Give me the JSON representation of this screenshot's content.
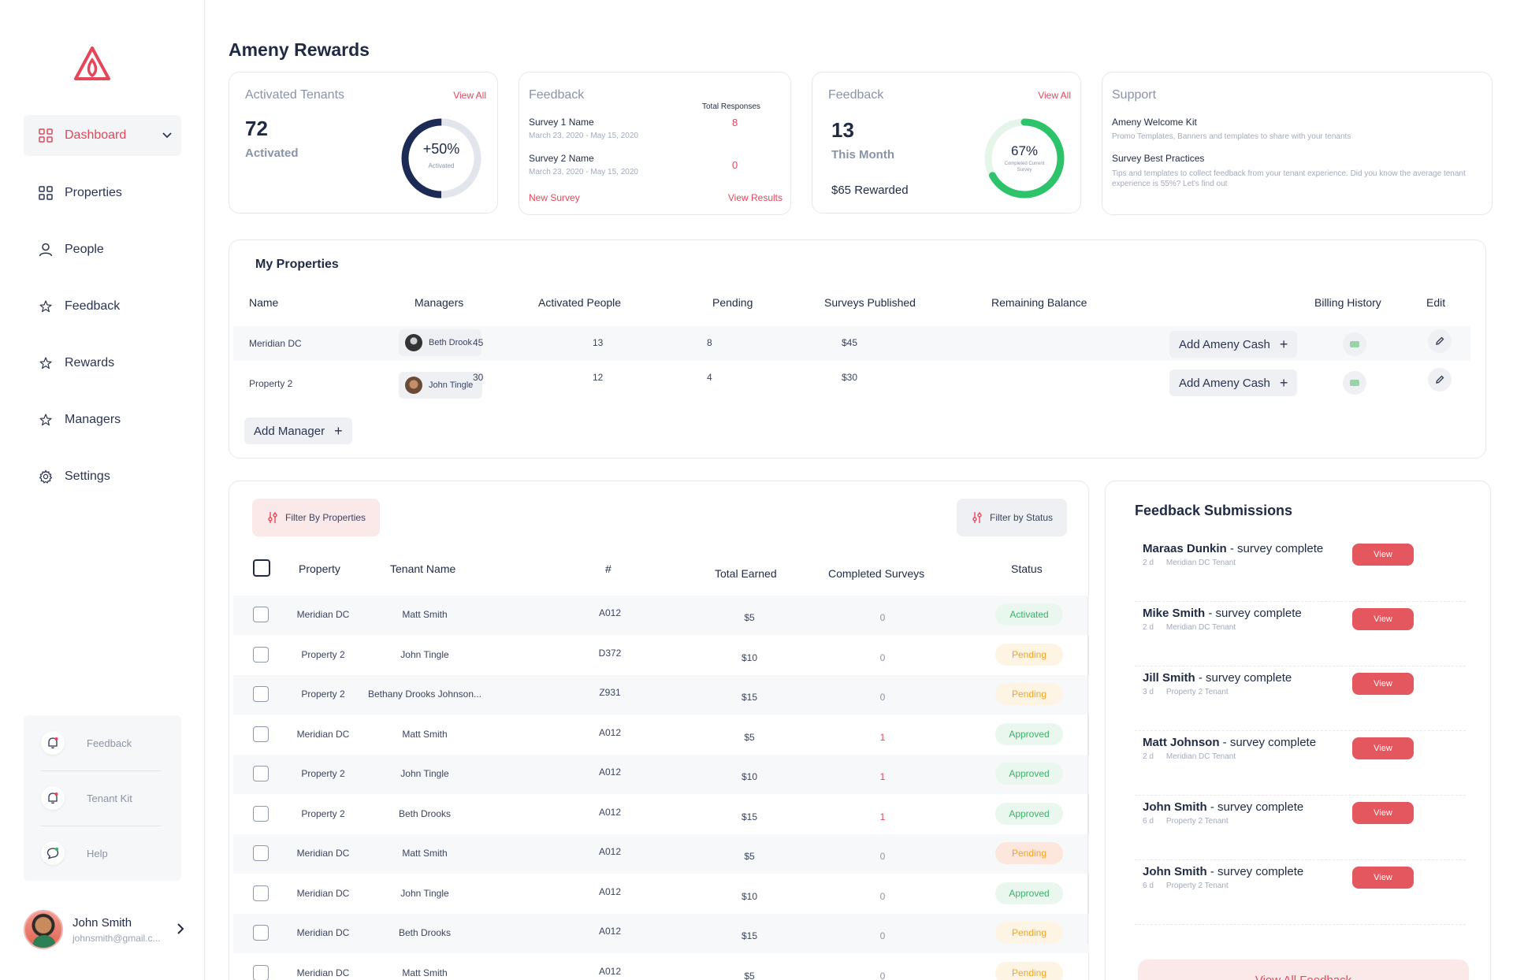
{
  "app_title": "Ameny Rewards",
  "colors": {
    "accent": "#e4475a",
    "navy": "#1f2a44",
    "green": "#3bb26a",
    "amber": "#f0a52a"
  },
  "sidebar": {
    "items": [
      {
        "label": "Dashboard",
        "icon": "grid-icon"
      },
      {
        "label": "Properties",
        "icon": "grid-icon"
      },
      {
        "label": "People",
        "icon": "user-icon"
      },
      {
        "label": "Feedback",
        "icon": "star-icon"
      },
      {
        "label": "Rewards",
        "icon": "star-icon"
      },
      {
        "label": "Managers",
        "icon": "star-icon"
      },
      {
        "label": "Settings",
        "icon": "gear-icon"
      }
    ],
    "bottom_links": [
      {
        "label": "Feedback",
        "icon": "bell-icon"
      },
      {
        "label": "Tenant Kit",
        "icon": "bell-icon"
      },
      {
        "label": "Help",
        "icon": "chat-icon"
      }
    ],
    "user": {
      "name": "John Smith",
      "email": "johnsmith@gmail.c..."
    }
  },
  "cards": {
    "activated": {
      "title": "Activated Tenants",
      "link": "View All",
      "count": "72",
      "count_label": "Activated",
      "ring_value": "+50%",
      "ring_label": "Activated",
      "ring_fraction": 0.5
    },
    "feedback1": {
      "title": "Feedback",
      "responses_label": "Total Responses",
      "surveys": [
        {
          "name": "Survey 1  Name",
          "dates": "March 23, 2020 - May 15, 2020",
          "responses": "8"
        },
        {
          "name": "Survey 2  Name",
          "dates": "March 23, 2020 - May 15, 2020",
          "responses": "0"
        }
      ],
      "new_survey": "New Survey",
      "view_results": "View Results"
    },
    "feedback2": {
      "title": "Feedback",
      "link": "View All",
      "count": "13",
      "count_label": "This Month",
      "rewarded": "$65 Rewarded",
      "ring_value": "67%",
      "ring_label": "Completed Current Survey",
      "ring_fraction": 0.67
    },
    "support": {
      "title": "Support",
      "items": [
        {
          "heading": "Ameny Welcome Kit",
          "text": "Promo Templates, Banners and templates to share with your tenants"
        },
        {
          "heading": "Survey Best Practices",
          "text": "Tips and templates to collect feedback from your tenant experience.  Did you know the average tenant experience is 55%?  Let's find out"
        }
      ]
    }
  },
  "my_properties": {
    "title": "My Properties",
    "columns": [
      "Name",
      "Managers",
      "Activated People",
      "Pending",
      "Surveys Published",
      "Remaining Balance",
      "Billing History",
      "Edit"
    ],
    "rows": [
      {
        "name": "Meridian DC",
        "manager": "Beth Drook",
        "activated": "45",
        "pending": "13",
        "surveys": "8",
        "balance": "$45",
        "action": "Add Ameny Cash"
      },
      {
        "name": "Property 2",
        "manager": "John Tingle",
        "activated": "30",
        "pending": "12",
        "surveys": "4",
        "balance": "$30",
        "action": "Add Ameny Cash"
      }
    ],
    "add_manager": "Add Manager"
  },
  "tenants": {
    "filter_properties": "Filter By Properties",
    "filter_status": "Filter by Status",
    "columns": [
      "Property",
      "Tenant Name",
      "#",
      "Total Earned",
      "Completed Surveys",
      "Status"
    ],
    "rows": [
      {
        "property": "Meridian DC",
        "tenant": "Matt Smith",
        "id": "A012",
        "earned": "$5",
        "completed": "0",
        "status": "Activated",
        "kind": "activated"
      },
      {
        "property": "Property 2",
        "tenant": "John Tingle",
        "id": "D372",
        "earned": "$10",
        "completed": "0",
        "status": "Pending",
        "kind": "pending"
      },
      {
        "property": "Property 2",
        "tenant": "Bethany Drooks Johnson...",
        "id": "Z931",
        "earned": "$15",
        "completed": "0",
        "status": "Pending",
        "kind": "pending"
      },
      {
        "property": "Meridian DC",
        "tenant": "Matt Smith",
        "id": "A012",
        "earned": "$5",
        "completed": "1",
        "status": "Approved",
        "kind": "approved"
      },
      {
        "property": "Property 2",
        "tenant": "John Tingle",
        "id": "A012",
        "earned": "$10",
        "completed": "1",
        "status": "Approved",
        "kind": "approved"
      },
      {
        "property": "Property 2",
        "tenant": "Beth Drooks",
        "id": "A012",
        "earned": "$15",
        "completed": "1",
        "status": "Approved",
        "kind": "approved"
      },
      {
        "property": "Meridian DC",
        "tenant": "Matt Smith",
        "id": "A012",
        "earned": "$5",
        "completed": "0",
        "status": "Pending",
        "kind": "pending2"
      },
      {
        "property": "Meridian DC",
        "tenant": "John Tingle",
        "id": "A012",
        "earned": "$10",
        "completed": "0",
        "status": "Approved",
        "kind": "approved"
      },
      {
        "property": "Meridian DC",
        "tenant": "Beth Drooks",
        "id": "A012",
        "earned": "$15",
        "completed": "0",
        "status": "Pending",
        "kind": "pending"
      },
      {
        "property": "Meridian DC",
        "tenant": "Matt Smith",
        "id": "A012",
        "earned": "$5",
        "completed": "0",
        "status": "Pending",
        "kind": "pending"
      }
    ]
  },
  "feedback_submissions": {
    "title": "Feedback Submissions",
    "items": [
      {
        "name": "Maraas Dunkin",
        "suffix": " - survey complete",
        "ago": "2 d",
        "tenant": "Meridian DC Tenant",
        "button": "View"
      },
      {
        "name": "Mike Smith",
        "suffix": " - survey complete",
        "ago": "2 d",
        "tenant": "Meridian DC Tenant",
        "button": "View"
      },
      {
        "name": "Jill Smith",
        "suffix": " - survey complete",
        "ago": "3 d",
        "tenant": "Property 2 Tenant",
        "button": "View"
      },
      {
        "name": "Matt Johnson",
        "suffix": " - survey complete",
        "ago": "2 d",
        "tenant": "Meridian DC Tenant",
        "button": "View"
      },
      {
        "name": "John Smith",
        "suffix": " - survey complete",
        "ago": "6 d",
        "tenant": "Property 2 Tenant",
        "button": "View"
      },
      {
        "name": "John Smith",
        "suffix": " - survey complete",
        "ago": "6 d",
        "tenant": "Property 2 Tenant",
        "button": "View"
      }
    ],
    "view_all": "View All Feedback"
  }
}
